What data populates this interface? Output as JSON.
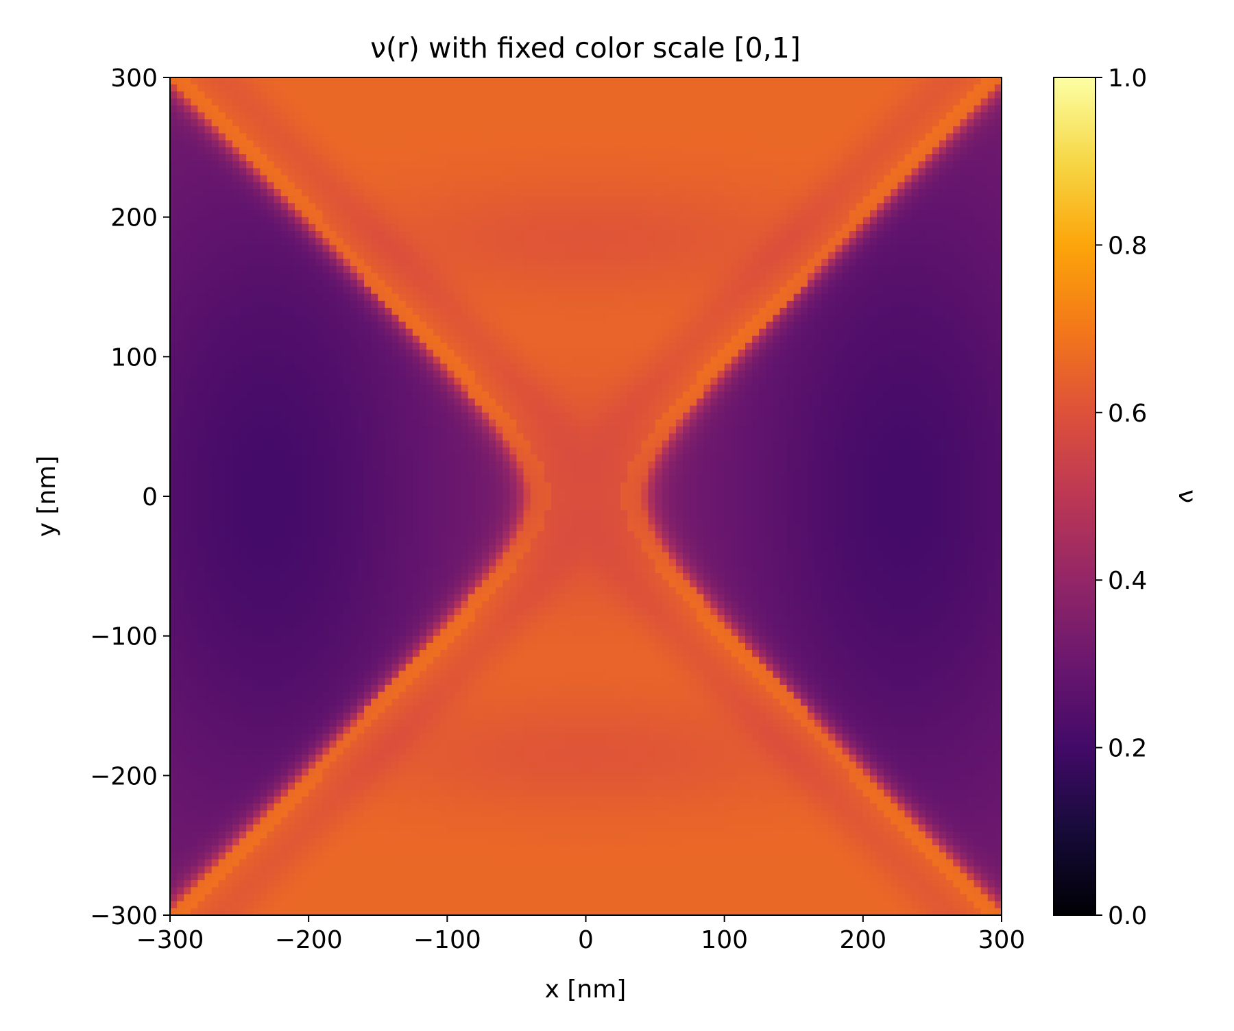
{
  "chart_data": {
    "type": "heatmap",
    "title": "ν(r) with fixed color scale [0,1]",
    "xlabel": "x [nm]",
    "ylabel": "y [nm]",
    "xlim": [
      -300,
      300
    ],
    "ylim": [
      -300,
      300
    ],
    "x_ticks": [
      -300,
      -200,
      -100,
      0,
      100,
      200,
      300
    ],
    "y_ticks": [
      -300,
      -200,
      -100,
      0,
      100,
      200,
      300
    ],
    "x_tick_labels": [
      "−300",
      "−200",
      "−100",
      "0",
      "100",
      "200",
      "300"
    ],
    "y_tick_labels": [
      "−300",
      "−200",
      "−100",
      "0",
      "100",
      "200",
      "300"
    ],
    "colorbar": {
      "label": "ν",
      "range": [
        0,
        1
      ],
      "ticks": [
        0.0,
        0.2,
        0.4,
        0.6,
        0.8,
        1.0
      ],
      "tick_labels": [
        "0.0",
        "0.2",
        "0.4",
        "0.6",
        "0.8",
        "1.0"
      ],
      "colormap": "inferno"
    },
    "grid": false,
    "field_description": {
      "resolution": [
        120,
        120
      ],
      "background_level": 0.66,
      "ridge_level": 0.63,
      "valley_level": 0.21,
      "center_level": 0.56,
      "hyperbola_vertex_nm": 40,
      "hyperbola_asymptote_slope": 1.0,
      "lobe_center_abs_x_nm": 230,
      "symmetry": "x and y mirror-symmetric"
    },
    "colors": {
      "background": "#ffffff",
      "axis": "#000000",
      "orange": "#e8622a",
      "purple": "#3b0a63",
      "colormap_stops": [
        {
          "v": 0.0,
          "color": "#000004"
        },
        {
          "v": 0.1,
          "color": "#160b39"
        },
        {
          "v": 0.2,
          "color": "#420a68"
        },
        {
          "v": 0.3,
          "color": "#6a176e"
        },
        {
          "v": 0.4,
          "color": "#932667"
        },
        {
          "v": 0.5,
          "color": "#bc3754"
        },
        {
          "v": 0.6,
          "color": "#dd513a"
        },
        {
          "v": 0.7,
          "color": "#f37819"
        },
        {
          "v": 0.8,
          "color": "#fca50a"
        },
        {
          "v": 0.9,
          "color": "#f6d746"
        },
        {
          "v": 1.0,
          "color": "#fcffa4"
        }
      ]
    }
  }
}
